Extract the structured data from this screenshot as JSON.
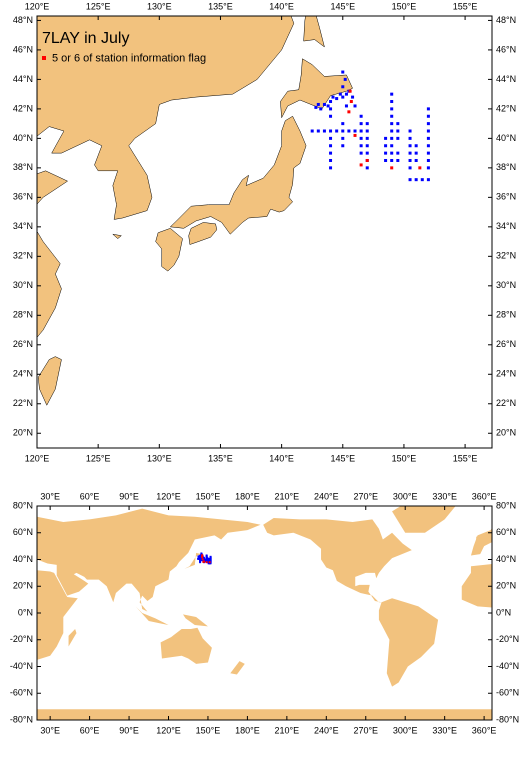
{
  "title": "7LAY in July",
  "legend": {
    "label": "5 or 6 of station information flag",
    "color": "#ff0000"
  },
  "stations": [
    {
      "color": "#0000ff",
      "x": [
        142.5,
        143,
        143.5,
        144,
        144.5,
        145,
        145.5,
        146,
        146.5,
        147,
        144,
        144,
        144,
        144,
        144,
        144,
        144,
        145,
        145,
        145,
        146.5,
        146.5,
        146.5,
        146.5,
        146.5,
        147,
        147,
        147,
        147,
        147,
        147,
        148.5,
        148.5,
        148.5,
        148.5,
        149,
        149,
        149,
        149,
        149,
        149,
        149,
        149,
        149,
        149,
        149.5,
        149.5,
        149.5,
        149.5,
        149.5,
        150.5,
        150.5,
        150.5,
        150.5,
        150.5,
        150.5,
        151,
        151,
        151,
        152,
        152,
        152,
        152,
        152,
        152,
        152,
        152,
        152,
        150.5,
        151,
        151.5,
        152,
        143,
        143.5,
        144,
        144.5,
        145,
        145.3,
        145,
        145.2,
        145,
        143.2,
        142.8,
        143.8,
        144.2,
        144.8,
        145.5,
        145.8,
        146,
        145.3
      ],
      "y": [
        40.5,
        40.5,
        40.5,
        40.5,
        40.5,
        40.5,
        40.5,
        40.5,
        40.5,
        40.5,
        42,
        41.5,
        40,
        39.5,
        39,
        38.5,
        38,
        41,
        40,
        39.5,
        41.5,
        41,
        40,
        39.5,
        39,
        41,
        40,
        39.5,
        39,
        38.5,
        38,
        40,
        39.5,
        39,
        38.5,
        43,
        42.5,
        42,
        41.5,
        41,
        40.5,
        40,
        39.5,
        39,
        38.5,
        41,
        40.5,
        40,
        39,
        38.5,
        40.5,
        40,
        39.5,
        39,
        38.5,
        38,
        39.5,
        39,
        38.5,
        42,
        41.5,
        41,
        40.5,
        40,
        39.5,
        39,
        38.5,
        38,
        37.2,
        37.2,
        37.2,
        37.2,
        42.3,
        42.3,
        42.5,
        42.7,
        42.8,
        43,
        43.5,
        44,
        44.5,
        42,
        42.1,
        42.2,
        42.8,
        43,
        43.2,
        42.8,
        42.2,
        42.2
      ]
    },
    {
      "color": "#ff0000",
      "x": [
        145.7,
        145.5,
        146,
        146.5,
        147,
        149,
        151.3,
        145.6
      ],
      "y": [
        42.5,
        41.8,
        40.2,
        38.2,
        38.5,
        38,
        38,
        43.2
      ]
    }
  ],
  "maps": [
    {
      "xlim": [
        120,
        157.2
      ],
      "ylim": [
        19,
        48.3
      ],
      "xticks": [
        {
          "value": 120,
          "label": "120°E"
        },
        {
          "value": 125,
          "label": "125°E"
        },
        {
          "value": 130,
          "label": "130°E"
        },
        {
          "value": 135,
          "label": "135°E"
        },
        {
          "value": 140,
          "label": "140°E"
        },
        {
          "value": 145,
          "label": "145°E"
        },
        {
          "value": 150,
          "label": "150°E"
        },
        {
          "value": 155,
          "label": "155°E"
        }
      ],
      "yticks": [
        {
          "value": 20,
          "label": "20°N"
        },
        {
          "value": 22,
          "label": "22°N"
        },
        {
          "value": 24,
          "label": "24°N"
        },
        {
          "value": 26,
          "label": "26°N"
        },
        {
          "value": 28,
          "label": "28°N"
        },
        {
          "value": 30,
          "label": "30°N"
        },
        {
          "value": 32,
          "label": "32°N"
        },
        {
          "value": 34,
          "label": "34°N"
        },
        {
          "value": 36,
          "label": "36°N"
        },
        {
          "value": 38,
          "label": "38°N"
        },
        {
          "value": 40,
          "label": "40°N"
        },
        {
          "value": 42,
          "label": "42°N"
        },
        {
          "value": 44,
          "label": "44°N"
        },
        {
          "value": 46,
          "label": "46°N"
        },
        {
          "value": 48,
          "label": "48°N"
        }
      ]
    },
    {
      "xlim": [
        20,
        366
      ],
      "ylim": [
        -80,
        80
      ],
      "xticks": [
        {
          "value": 30,
          "label": "30°E"
        },
        {
          "value": 60,
          "label": "60°E"
        },
        {
          "value": 90,
          "label": "90°E"
        },
        {
          "value": 120,
          "label": "120°E"
        },
        {
          "value": 150,
          "label": "150°E"
        },
        {
          "value": 180,
          "label": "180°E"
        },
        {
          "value": 210,
          "label": "210°E"
        },
        {
          "value": 240,
          "label": "240°E"
        },
        {
          "value": 270,
          "label": "270°E"
        },
        {
          "value": 300,
          "label": "300°E"
        },
        {
          "value": 330,
          "label": "330°E"
        },
        {
          "value": 360,
          "label": "360°E"
        }
      ],
      "yticks": [
        {
          "value": -80,
          "label": "-80°N"
        },
        {
          "value": -60,
          "label": "-60°N"
        },
        {
          "value": -40,
          "label": "-40°N"
        },
        {
          "value": -20,
          "label": "-20°N"
        },
        {
          "value": 0,
          "label": "0°N"
        },
        {
          "value": 20,
          "label": "20°N"
        },
        {
          "value": 40,
          "label": "40°N"
        },
        {
          "value": 60,
          "label": "60°N"
        },
        {
          "value": 80,
          "label": "80°N"
        }
      ]
    }
  ]
}
